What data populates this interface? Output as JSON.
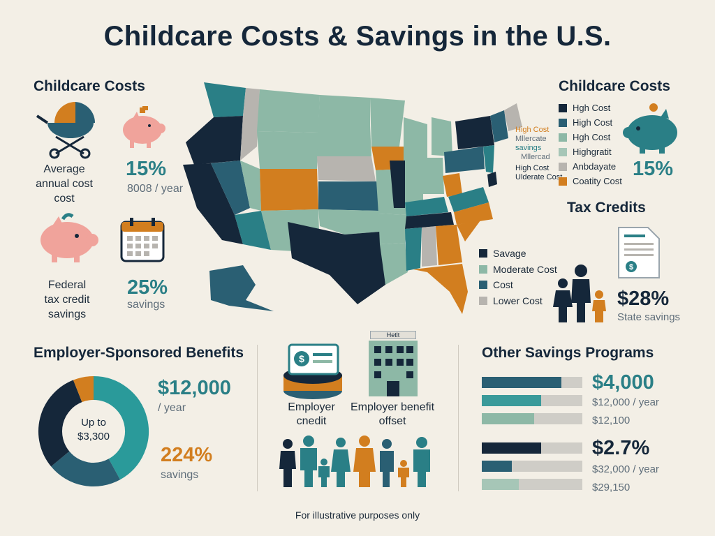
{
  "title": "Childcare Costs & Savings in the U.S.",
  "colors": {
    "navy": "#15273a",
    "teal": "#2a7f86",
    "sage": "#8db8a6",
    "gray": "#b7b4af",
    "orange": "#d27e1f",
    "pink": "#f0a39b",
    "background": "#f3efe6"
  },
  "left": {
    "section_title": "Childcare Costs",
    "average_label": "Average\nannual cost\ncost",
    "percent_1": "15%",
    "per_year": "8008 / year",
    "federal_label": "Federal\ntax credit\nsavings",
    "percent_2": "25%",
    "savings": "savings"
  },
  "map": {
    "annotation_1": [
      "High Cost",
      "Mllercate",
      "savings",
      "Mllercad",
      "High Cost",
      "Ulderate Cost"
    ],
    "lower_legend": [
      {
        "label": "Savage",
        "color": "#15273a"
      },
      {
        "label": "Moderate Cost",
        "color": "#8db8a6"
      },
      {
        "label": "Cost",
        "color": "#2a5f73"
      },
      {
        "label": "Lower Cost",
        "color": "#b7b4af"
      }
    ]
  },
  "right": {
    "section_title": "Childcare Costs",
    "legend": [
      {
        "label": "Hgh Cost",
        "color": "#15273a"
      },
      {
        "label": "High Cost",
        "color": "#2a5f73"
      },
      {
        "label": "Hgh Cost",
        "color": "#8db8a6"
      },
      {
        "label": "Highgratit",
        "color": "#a6c6b7"
      },
      {
        "label": "Anbdayate",
        "color": "#b7b4af"
      },
      {
        "label": "Coatity Cost",
        "color": "#d27e1f"
      }
    ],
    "percent": "15%",
    "tax_title": "Tax Credits",
    "tax_percent": "$28%",
    "tax_sub": "State savings"
  },
  "employer": {
    "section_title": "Employer-Sponsored Benefits",
    "donut_center_1": "Up to",
    "donut_center_2": "$3,300",
    "amount": "$12,000",
    "per_year": "/ year",
    "percent": "224%",
    "savings": "savings",
    "credit_label_1": "Employer",
    "credit_label_2": "cnedit",
    "offset_label_1": "Employer benefit",
    "offset_label_2": "offset",
    "building_sign": "Hetlt"
  },
  "other": {
    "section_title": "Other Savings Programs",
    "group1_amount": "$4,000",
    "group1_line2": "$12,000 / year",
    "group1_line3": "$12,100",
    "group2_amount": "$2.7%",
    "group2_line2": "$32,000 / year",
    "group2_line3": "$29,150"
  },
  "chart_data": {
    "type": "bar",
    "groups": [
      {
        "series": [
          {
            "color": "#2a5f73",
            "value": 0.79
          },
          {
            "color": "#3a9a9a",
            "value": 0.59
          },
          {
            "color": "#8db8a6",
            "value": 0.52
          }
        ]
      },
      {
        "series": [
          {
            "color": "#15273a",
            "value": 0.59
          },
          {
            "color": "#2a5f73",
            "value": 0.3
          },
          {
            "color": "#a6c6b7",
            "value": 0.37
          }
        ]
      }
    ],
    "donut": [
      {
        "color": "#2a9a9a",
        "value": 0.42
      },
      {
        "color": "#2a5f73",
        "value": 0.22
      },
      {
        "color": "#15273a",
        "value": 0.3
      },
      {
        "color": "#d27e1f",
        "value": 0.06
      }
    ]
  },
  "footer": "For illustrative purposes only"
}
